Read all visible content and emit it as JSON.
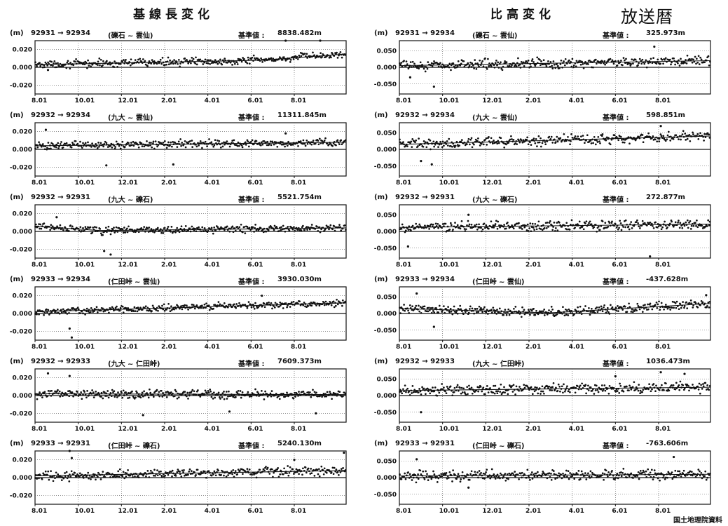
{
  "titles": {
    "left": "基線長変化",
    "right": "比高変化",
    "stamp": "放送暦",
    "source": "国土地理院資料"
  },
  "left_panels": [
    {
      "unit": "(m)",
      "route": "92931 → 92934",
      "names": "(礫石 ~ 雲仙)",
      "base": "基準値 :",
      "value": "8838.482m"
    },
    {
      "unit": "(m)",
      "route": "92932 → 92934",
      "names": "(九大 ~ 雲仙)",
      "base": "基準値 :",
      "value": "11311.845m"
    },
    {
      "unit": "(m)",
      "route": "92932 → 92931",
      "names": "(九大 ~ 礫石)",
      "base": "基準値 :",
      "value": "5521.754m"
    },
    {
      "unit": "(m)",
      "route": "92933 → 92934",
      "names": "(仁田峠 ~ 雲仙)",
      "base": "基準値 :",
      "value": "3930.030m"
    },
    {
      "unit": "(m)",
      "route": "92932 → 92933",
      "names": "(九大 ~ 仁田峠)",
      "base": "基準値 :",
      "value": "7609.373m"
    },
    {
      "unit": "(m)",
      "route": "92933 → 92931",
      "names": "(仁田峠 ~ 礫石)",
      "base": "基準値 :",
      "value": "5240.130m"
    }
  ],
  "right_panels": [
    {
      "unit": "(m)",
      "route": "92931 → 92934",
      "names": "(礫石 ~ 雲仙)",
      "base": "基準値 :",
      "value": "325.973m"
    },
    {
      "unit": "(m)",
      "route": "92932 → 92934",
      "names": "(九大 ~ 雲仙)",
      "base": "基準値 :",
      "value": "598.851m"
    },
    {
      "unit": "(m)",
      "route": "92932 → 92931",
      "names": "(九大 ~ 礫石)",
      "base": "基準値 :",
      "value": "272.877m"
    },
    {
      "unit": "(m)",
      "route": "92933 → 92934",
      "names": "(仁田峠 ~ 雲仙)",
      "base": "基準値 :",
      "value": "-437.628m"
    },
    {
      "unit": "(m)",
      "route": "92932 → 92933",
      "names": "(九大 ~ 仁田峠)",
      "base": "基準値 :",
      "value": "1036.473m"
    },
    {
      "unit": "(m)",
      "route": "92933 → 92931",
      "names": "(仁田峠 ~ 礫石)",
      "base": "基準値 :",
      "value": "-763.606m"
    }
  ],
  "chart_data": {
    "type": "scatter",
    "x_tick_labels": [
      "8.01",
      "10.01",
      "12.01",
      "2.01",
      "4.01",
      "6.01",
      "8.01"
    ],
    "x_range_months": [
      0,
      14.4
    ],
    "grid": true,
    "left": {
      "ylim": [
        -0.03,
        0.03
      ],
      "y_ticks": [
        0.02,
        0.0,
        -0.02
      ],
      "y_tick_labels": [
        "0.020",
        "0.000",
        "-0.020"
      ],
      "series": [
        {
          "route": "92931 → 92934",
          "trend_points": [
            [
              0,
              0.003
            ],
            [
              10.5,
              0.008
            ],
            [
              14.4,
              0.015
            ]
          ],
          "scatter_amp": 0.004,
          "outliers": [
            [
              11.6,
              0.03
            ],
            [
              13.2,
              0.033
            ],
            [
              0.6,
              -0.003
            ]
          ]
        },
        {
          "route": "92932 → 92934",
          "trend_points": [
            [
              0,
              0.004
            ],
            [
              14.4,
              0.008
            ]
          ],
          "scatter_amp": 0.004,
          "outliers": [
            [
              0.5,
              0.022
            ],
            [
              3.3,
              -0.018
            ],
            [
              6.4,
              -0.017
            ],
            [
              11.6,
              0.018
            ]
          ]
        },
        {
          "route": "92932 → 92931",
          "trend_points": [
            [
              0,
              0.006
            ],
            [
              3,
              0.001
            ],
            [
              14.4,
              0.004
            ]
          ],
          "scatter_amp": 0.004,
          "outliers": [
            [
              3.2,
              -0.022
            ],
            [
              3.5,
              -0.026
            ],
            [
              1.0,
              0.016
            ]
          ]
        },
        {
          "route": "92933 → 92934",
          "trend_points": [
            [
              0,
              0.002
            ],
            [
              14.4,
              0.012
            ]
          ],
          "scatter_amp": 0.004,
          "outliers": [
            [
              1.6,
              -0.017
            ],
            [
              1.7,
              -0.027
            ],
            [
              10.5,
              0.02
            ]
          ]
        },
        {
          "route": "92932 → 92933",
          "trend_points": [
            [
              0,
              0.002
            ],
            [
              14.4,
              0.001
            ]
          ],
          "scatter_amp": 0.005,
          "outliers": [
            [
              0.6,
              0.025
            ],
            [
              1.6,
              0.022
            ],
            [
              5.0,
              -0.022
            ],
            [
              9.0,
              -0.018
            ],
            [
              13.0,
              -0.02
            ]
          ]
        },
        {
          "route": "92933 → 92931",
          "trend_points": [
            [
              0,
              0.002
            ],
            [
              14.4,
              0.008
            ]
          ],
          "scatter_amp": 0.005,
          "outliers": [
            [
              1.6,
              0.038
            ],
            [
              1.7,
              0.022
            ],
            [
              12.0,
              0.02
            ],
            [
              14.3,
              0.028
            ]
          ]
        }
      ]
    },
    "right": {
      "ylim": [
        -0.08,
        0.08
      ],
      "y_ticks": [
        0.05,
        0.0,
        -0.05
      ],
      "y_tick_labels": [
        "0.050",
        "0.000",
        "-0.050"
      ],
      "series": [
        {
          "route": "92931 → 92934",
          "trend_points": [
            [
              0,
              0.005
            ],
            [
              14.4,
              0.02
            ]
          ],
          "scatter_amp": 0.014,
          "outliers": [
            [
              1.6,
              -0.058
            ],
            [
              11.8,
              0.062
            ],
            [
              0.5,
              -0.03
            ]
          ]
        },
        {
          "route": "92932 → 92934",
          "trend_points": [
            [
              0,
              0.015
            ],
            [
              14.4,
              0.04
            ]
          ],
          "scatter_amp": 0.014,
          "outliers": [
            [
              1.0,
              -0.035
            ],
            [
              1.5,
              -0.045
            ],
            [
              12.1,
              0.07
            ]
          ]
        },
        {
          "route": "92932 → 92931",
          "trend_points": [
            [
              0,
              0.012
            ],
            [
              14.4,
              0.022
            ]
          ],
          "scatter_amp": 0.014,
          "outliers": [
            [
              0.4,
              -0.045
            ],
            [
              11.6,
              -0.075
            ],
            [
              3.2,
              0.05
            ]
          ]
        },
        {
          "route": "92933 → 92934",
          "trend_points": [
            [
              0,
              0.015
            ],
            [
              7,
              0.002
            ],
            [
              14.4,
              0.03
            ]
          ],
          "scatter_amp": 0.013,
          "outliers": [
            [
              1.6,
              -0.04
            ],
            [
              0.8,
              0.06
            ],
            [
              14.2,
              0.055
            ]
          ]
        },
        {
          "route": "92932 → 92933",
          "trend_points": [
            [
              0,
              0.015
            ],
            [
              14.4,
              0.025
            ]
          ],
          "scatter_amp": 0.015,
          "outliers": [
            [
              1.0,
              -0.05
            ],
            [
              12.1,
              0.07
            ],
            [
              13.2,
              0.065
            ],
            [
              10.0,
              0.058
            ]
          ]
        },
        {
          "route": "92933 → 92931",
          "trend_points": [
            [
              0,
              0.005
            ],
            [
              14.4,
              0.01
            ]
          ],
          "scatter_amp": 0.015,
          "outliers": [
            [
              0.8,
              0.055
            ],
            [
              12.7,
              0.062
            ],
            [
              3.2,
              -0.03
            ]
          ]
        }
      ]
    }
  }
}
